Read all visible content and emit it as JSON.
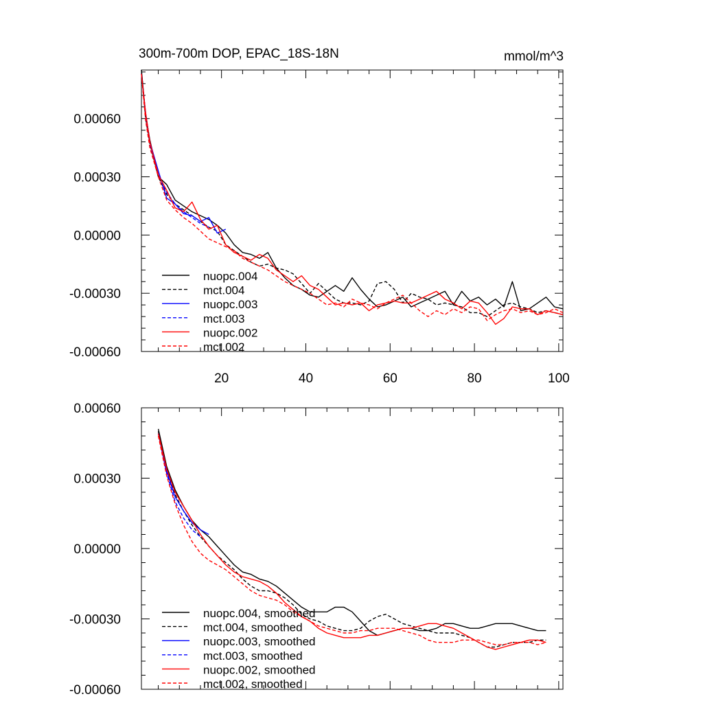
{
  "chart_data": [
    {
      "type": "line",
      "title": "300m-700m DOP, EPAC_18S-18N",
      "units": "mmol/m^3",
      "xlim": [
        1,
        101
      ],
      "ylim": [
        -0.0006,
        0.00085
      ],
      "yticks": [
        "0.00060",
        "0.00030",
        "0.00000",
        "-0.00030",
        "-0.00060"
      ],
      "ytick_values": [
        0.0006,
        0.0003,
        0.0,
        -0.0003,
        -0.0006
      ],
      "xticks": [
        "20",
        "40",
        "60",
        "80",
        "100"
      ],
      "xtick_values": [
        20,
        40,
        60,
        80,
        100
      ],
      "legend_position": "bottom-left",
      "series": [
        {
          "name": "nuopc.004",
          "color": "#000000",
          "dash": "solid",
          "x": [
            1,
            2,
            3,
            5,
            7,
            9,
            11,
            13,
            15,
            17,
            19,
            21,
            23,
            25,
            27,
            29,
            31,
            33,
            35,
            37,
            39,
            41,
            43,
            45,
            47,
            49,
            51,
            53,
            55,
            57,
            59,
            61,
            63,
            65,
            67,
            69,
            71,
            73,
            75,
            77,
            79,
            81,
            83,
            85,
            87,
            89,
            91,
            93,
            95,
            97,
            99,
            101
          ],
          "values": [
            0.00085,
            0.00062,
            0.00049,
            0.0003,
            0.00026,
            0.00018,
            0.00015,
            0.00012,
            0.0001,
            8e-05,
            5e-05,
            1e-05,
            -5e-05,
            -9e-05,
            -0.0001,
            -0.00012,
            -9e-05,
            -0.00017,
            -0.00022,
            -0.00026,
            -0.00028,
            -0.00031,
            -0.00032,
            -0.00029,
            -0.00026,
            -0.00029,
            -0.00022,
            -0.00028,
            -0.00033,
            -0.00037,
            -0.00036,
            -0.00034,
            -0.00032,
            -0.00037,
            -0.00035,
            -0.00033,
            -0.00031,
            -0.00029,
            -0.00036,
            -0.00029,
            -0.00034,
            -0.00032,
            -0.00036,
            -0.00033,
            -0.00037,
            -0.00024,
            -0.00039,
            -0.00038,
            -0.00035,
            -0.00032,
            -0.00037,
            -0.00038
          ]
        },
        {
          "name": "mct.004",
          "color": "#000000",
          "dash": "dashed",
          "x": [
            1,
            2,
            3,
            5,
            7,
            9,
            11,
            13,
            15,
            17,
            19,
            21,
            23,
            25,
            27,
            29,
            31,
            33,
            35,
            37,
            39,
            41,
            43,
            45,
            47,
            49,
            51,
            53,
            55,
            57,
            59,
            61,
            63,
            65,
            67,
            69,
            71,
            73,
            75,
            77,
            79,
            81,
            83,
            85,
            87,
            89,
            91,
            93,
            95,
            97,
            99,
            101
          ],
          "values": [
            0.00085,
            0.0006,
            0.00047,
            0.0003,
            0.00021,
            0.00016,
            0.00013,
            0.0001,
            7e-05,
            4e-05,
            2e-05,
            -5e-05,
            -8e-05,
            -0.00011,
            -0.00014,
            -0.00016,
            -0.00015,
            -0.00017,
            -0.00018,
            -0.0002,
            -0.00025,
            -0.0003,
            -0.00025,
            -0.00029,
            -0.00033,
            -0.00035,
            -0.00035,
            -0.00036,
            -0.00034,
            -0.00025,
            -0.00024,
            -0.00028,
            -0.00035,
            -0.0003,
            -0.00032,
            -0.00033,
            -0.00036,
            -0.00035,
            -0.00036,
            -0.00037,
            -0.0004,
            -0.0004,
            -0.00042,
            -0.00039,
            -0.00036,
            -0.00035,
            -0.00037,
            -0.00038,
            -0.0004,
            -0.00039,
            -0.0004,
            -0.00041
          ]
        },
        {
          "name": "nuopc.003",
          "color": "#0000ff",
          "dash": "solid",
          "x": [
            1,
            2,
            3,
            5,
            7,
            9,
            11,
            13,
            15,
            17,
            19,
            21
          ],
          "values": [
            0.00083,
            0.00063,
            0.00048,
            0.00033,
            0.00019,
            0.00016,
            0.00011,
            0.0001,
            7e-05,
            9e-05,
            1e-05,
            3e-05
          ]
        },
        {
          "name": "mct.003",
          "color": "#0000ff",
          "dash": "dashed",
          "x": [
            1,
            2,
            3,
            5,
            7,
            9,
            11,
            13,
            15,
            17
          ],
          "values": [
            0.00083,
            0.0006,
            0.00046,
            0.00031,
            0.00022,
            0.00016,
            0.00012,
            9e-05,
            6e-05,
            4e-05
          ]
        },
        {
          "name": "nuopc.002",
          "color": "#ff0000",
          "dash": "solid",
          "x": [
            1,
            2,
            3,
            5,
            7,
            9,
            11,
            13,
            15,
            17,
            19,
            21,
            23,
            25,
            27,
            29,
            31,
            33,
            35,
            37,
            39,
            41,
            43,
            45,
            47,
            49,
            51,
            53,
            55,
            57,
            59,
            61,
            63,
            65,
            67,
            69,
            71,
            73,
            75,
            77,
            79,
            81,
            83,
            85,
            87,
            89,
            91,
            93,
            95,
            97,
            99,
            101
          ],
          "values": [
            0.00083,
            0.00063,
            0.00048,
            0.00031,
            0.00023,
            0.00014,
            0.00012,
            0.00017,
            8e-05,
            3e-05,
            5e-05,
            -5e-05,
            -9e-05,
            -0.00011,
            -0.00013,
            -0.0001,
            -0.00012,
            -0.00018,
            -0.00021,
            -0.00024,
            -0.00021,
            -0.00026,
            -0.00028,
            -0.00032,
            -0.00036,
            -0.00035,
            -0.00036,
            -0.00035,
            -0.00039,
            -0.00036,
            -0.00035,
            -0.00034,
            -0.00035,
            -0.00035,
            -0.00033,
            -0.00031,
            -0.00029,
            -0.00033,
            -0.00035,
            -0.00038,
            -0.00034,
            -0.00035,
            -0.0004,
            -0.00046,
            -0.00043,
            -0.00037,
            -0.00038,
            -0.00038,
            -0.00041,
            -0.00039,
            -0.0004,
            -0.00041
          ]
        },
        {
          "name": "mct.002",
          "color": "#ff0000",
          "dash": "dashed",
          "x": [
            1,
            2,
            3,
            5,
            7,
            9,
            11,
            13,
            15,
            17,
            19,
            21,
            23,
            25,
            27,
            29,
            31,
            33,
            35,
            37,
            39,
            41,
            43,
            45,
            47,
            49,
            51,
            53,
            55,
            57,
            59,
            61,
            63,
            65,
            67,
            69,
            71,
            73,
            75,
            77,
            79,
            81,
            83,
            85,
            87,
            89,
            91,
            93,
            95,
            97,
            99,
            101
          ],
          "values": [
            0.00083,
            0.00059,
            0.00045,
            0.0003,
            0.00018,
            0.00013,
            9e-05,
            6e-05,
            2e-05,
            -2e-05,
            -4e-05,
            -6e-05,
            -8e-05,
            -0.00012,
            -0.00014,
            -0.00016,
            -0.00018,
            -0.00021,
            -0.00024,
            -0.00026,
            -0.00028,
            -0.0003,
            -0.00033,
            -0.00036,
            -0.00035,
            -0.00037,
            -0.00033,
            -0.00035,
            -0.00036,
            -0.00038,
            -0.00035,
            -0.00033,
            -0.00031,
            -0.00035,
            -0.00039,
            -0.00042,
            -0.00039,
            -0.00041,
            -0.00038,
            -0.0004,
            -0.00037,
            -0.00038,
            -0.00044,
            -0.00041,
            -0.00039,
            -0.00038,
            -0.0004,
            -0.00039,
            -0.00041,
            -0.0004,
            -0.00038,
            -0.0004
          ]
        }
      ]
    },
    {
      "type": "line",
      "title": "",
      "xlim": [
        1,
        101
      ],
      "ylim": [
        -0.0006,
        0.0006
      ],
      "yticks": [
        "0.00060",
        "0.00030",
        "0.00000",
        "-0.00030",
        "-0.00060"
      ],
      "ytick_values": [
        0.0006,
        0.0003,
        0.0,
        -0.0003,
        -0.0006
      ],
      "legend_position": "bottom-left",
      "series": [
        {
          "name": "nuopc.004, smoothed",
          "color": "#000000",
          "dash": "solid",
          "x": [
            5,
            7,
            9,
            11,
            13,
            15,
            17,
            19,
            21,
            23,
            25,
            27,
            29,
            31,
            33,
            35,
            37,
            39,
            41,
            43,
            45,
            47,
            49,
            51,
            53,
            55,
            57,
            59,
            61,
            63,
            65,
            67,
            69,
            71,
            73,
            75,
            77,
            79,
            81,
            83,
            85,
            87,
            89,
            91,
            93,
            95,
            97
          ],
          "values": [
            0.00051,
            0.00035,
            0.00025,
            0.00018,
            0.00012,
            8e-05,
            5e-05,
            1e-05,
            -3e-05,
            -7e-05,
            -0.0001,
            -0.00011,
            -0.00013,
            -0.00014,
            -0.00016,
            -0.00019,
            -0.00022,
            -0.00025,
            -0.00027,
            -0.00027,
            -0.00027,
            -0.00025,
            -0.00025,
            -0.00027,
            -0.00031,
            -0.00035,
            -0.00037,
            -0.00036,
            -0.00035,
            -0.00034,
            -0.00034,
            -0.00035,
            -0.00035,
            -0.00034,
            -0.00032,
            -0.00032,
            -0.00033,
            -0.00034,
            -0.00034,
            -0.00033,
            -0.00032,
            -0.00032,
            -0.00032,
            -0.00033,
            -0.00034,
            -0.00035,
            -0.00035
          ]
        },
        {
          "name": "mct.004, smoothed",
          "color": "#000000",
          "dash": "dashed",
          "x": [
            5,
            7,
            9,
            11,
            13,
            15,
            17,
            19,
            21,
            23,
            25,
            27,
            29,
            31,
            33,
            35,
            37,
            39,
            41,
            43,
            45,
            47,
            49,
            51,
            53,
            55,
            57,
            59,
            61,
            63,
            65,
            67,
            69,
            71,
            73,
            75,
            77,
            79,
            81,
            83,
            85,
            87,
            89,
            91,
            93,
            95,
            97
          ],
          "values": [
            0.0005,
            0.00033,
            0.00023,
            0.00016,
            0.0001,
            5e-05,
            1e-05,
            -3e-05,
            -6e-05,
            -9e-05,
            -0.00013,
            -0.00016,
            -0.00018,
            -0.00018,
            -0.00019,
            -0.00021,
            -0.00024,
            -0.00028,
            -0.0003,
            -0.00031,
            -0.00033,
            -0.00034,
            -0.00035,
            -0.00035,
            -0.00034,
            -0.00031,
            -0.00029,
            -0.00028,
            -0.0003,
            -0.00032,
            -0.00033,
            -0.00034,
            -0.00035,
            -0.00036,
            -0.00036,
            -0.00036,
            -0.00037,
            -0.00038,
            -0.0004,
            -0.00042,
            -0.00042,
            -0.00041,
            -0.0004,
            -0.0004,
            -0.0004,
            -0.00039,
            -0.00039
          ]
        },
        {
          "name": "nuopc.003, smoothed",
          "color": "#0000ff",
          "dash": "solid",
          "x": [
            5,
            7,
            9,
            11,
            13,
            15,
            17
          ],
          "values": [
            0.00049,
            0.00033,
            0.00022,
            0.00016,
            0.00011,
            8e-05,
            6e-05
          ]
        },
        {
          "name": "mct.003, smoothed",
          "color": "#0000ff",
          "dash": "dashed",
          "x": [
            5,
            7,
            9,
            11,
            13,
            15
          ],
          "values": [
            0.00049,
            0.00032,
            0.0002,
            0.00013,
            8e-05,
            5e-05
          ]
        },
        {
          "name": "nuopc.002, smoothed",
          "color": "#ff0000",
          "dash": "solid",
          "x": [
            5,
            7,
            9,
            11,
            13,
            15,
            17,
            19,
            21,
            23,
            25,
            27,
            29,
            31,
            33,
            35,
            37,
            39,
            41,
            43,
            45,
            47,
            49,
            51,
            53,
            55,
            57,
            59,
            61,
            63,
            65,
            67,
            69,
            71,
            73,
            75,
            77,
            79,
            81,
            83,
            85,
            87,
            89,
            91,
            93,
            95,
            97
          ],
          "values": [
            0.00049,
            0.00034,
            0.00024,
            0.00018,
            0.00012,
            6e-05,
            1e-05,
            -3e-05,
            -7e-05,
            -0.0001,
            -0.00012,
            -0.00013,
            -0.00014,
            -0.00016,
            -0.00019,
            -0.00023,
            -0.00026,
            -0.00029,
            -0.00031,
            -0.00034,
            -0.00036,
            -0.00037,
            -0.00038,
            -0.00038,
            -0.00038,
            -0.00037,
            -0.00037,
            -0.00036,
            -0.00035,
            -0.00034,
            -0.00034,
            -0.00033,
            -0.00032,
            -0.00032,
            -0.00033,
            -0.00034,
            -0.00036,
            -0.00038,
            -0.0004,
            -0.00042,
            -0.00043,
            -0.00042,
            -0.00041,
            -0.0004,
            -0.00039,
            -0.00039,
            -0.0004
          ]
        },
        {
          "name": "mct.002, smoothed",
          "color": "#ff0000",
          "dash": "dashed",
          "x": [
            5,
            7,
            9,
            11,
            13,
            15,
            17,
            19,
            21,
            23,
            25,
            27,
            29,
            31,
            33,
            35,
            37,
            39,
            41,
            43,
            45,
            47,
            49,
            51,
            53,
            55,
            57,
            59,
            61,
            63,
            65,
            67,
            69,
            71,
            73,
            75,
            77,
            79,
            81,
            83,
            85,
            87,
            89,
            91,
            93,
            95,
            97
          ],
          "values": [
            0.00048,
            0.00031,
            0.00019,
            0.0001,
            3e-05,
            -2e-05,
            -5e-05,
            -7e-05,
            -9e-05,
            -0.00012,
            -0.00015,
            -0.00018,
            -0.0002,
            -0.00021,
            -0.00022,
            -0.00024,
            -0.00027,
            -0.00029,
            -0.00031,
            -0.00033,
            -0.00034,
            -0.00035,
            -0.00036,
            -0.00036,
            -0.00035,
            -0.00035,
            -0.00034,
            -0.00034,
            -0.00034,
            -0.00035,
            -0.00036,
            -0.00037,
            -0.00039,
            -0.0004,
            -0.0004,
            -0.0004,
            -0.00039,
            -0.00039,
            -0.00039,
            -0.0004,
            -0.00041,
            -0.00041,
            -0.0004,
            -0.0004,
            -0.0004,
            -0.00041,
            -0.0004
          ]
        }
      ]
    }
  ]
}
